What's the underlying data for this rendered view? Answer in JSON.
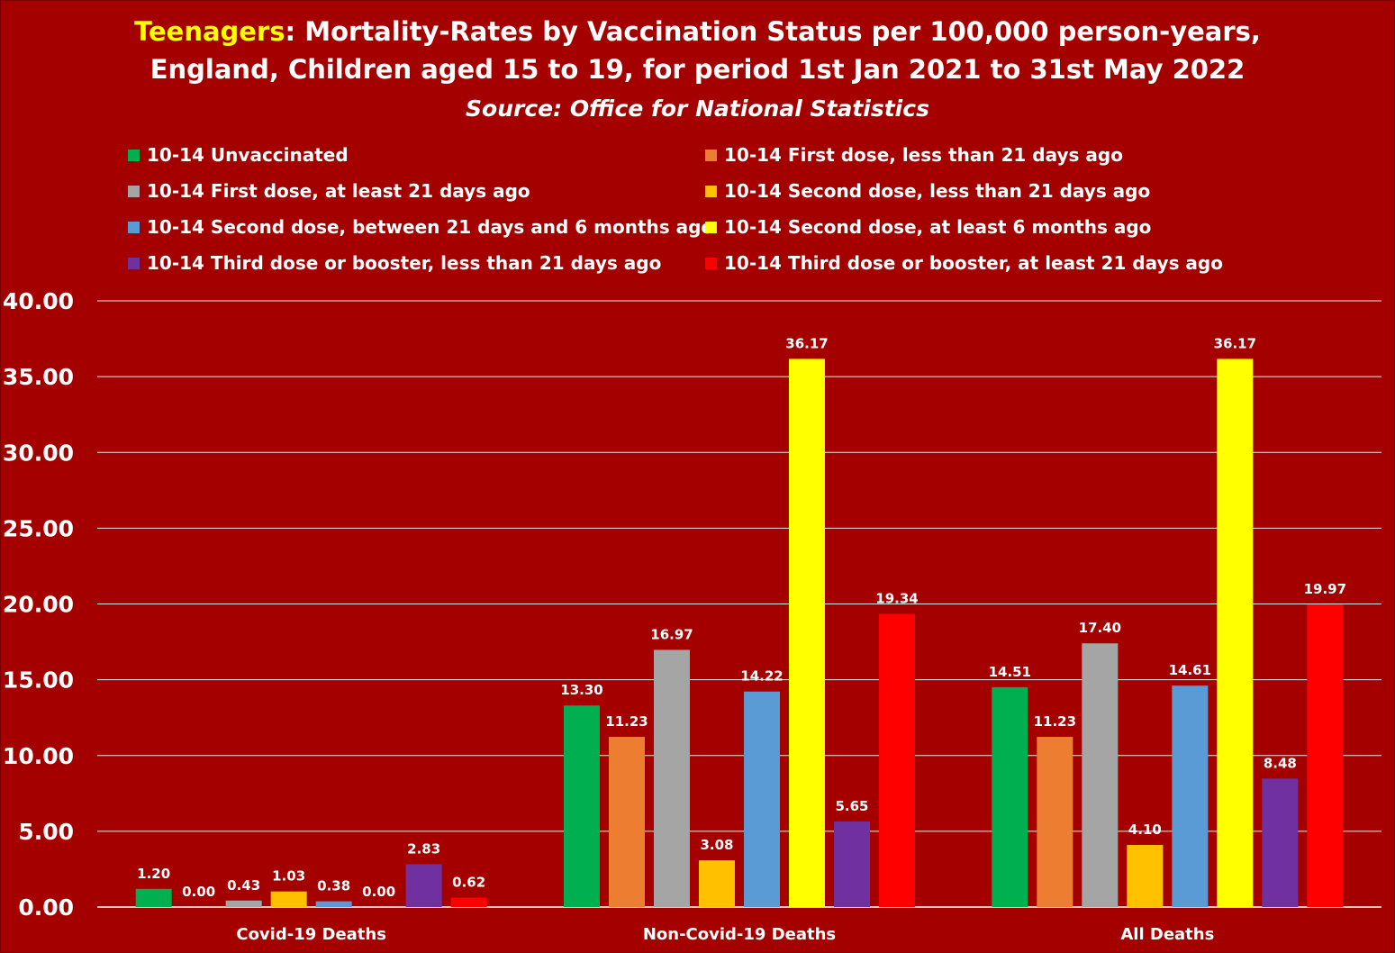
{
  "chart_data": {
    "type": "bar",
    "title_highlight": "Teenagers",
    "title_rest": ": Mortality-Rates by Vaccination Status per 100,000 person-years,",
    "title_line2": "England, Children aged 15 to 19, for period 1st Jan 2021 to 31st May 2022",
    "subtitle": "Source: Office for National Statistics",
    "categories": [
      "Covid-19 Deaths",
      "Non-Covid-19 Deaths",
      "All Deaths"
    ],
    "ylim": [
      0,
      40
    ],
    "yticks": [
      "0.00",
      "5.00",
      "10.00",
      "15.00",
      "20.00",
      "25.00",
      "30.00",
      "35.00",
      "40.00"
    ],
    "grid": true,
    "legend_position": "top",
    "series": [
      {
        "name": "10-14 Unvaccinated",
        "color": "#00b050",
        "values": [
          1.2,
          13.3,
          14.51
        ],
        "labels": [
          "1.20",
          "13.30",
          "14.51"
        ]
      },
      {
        "name": "10-14 First dose, less than 21 days ago",
        "color": "#ed7d31",
        "values": [
          0.0,
          11.23,
          11.23
        ],
        "labels": [
          "0.00",
          "11.23",
          "11.23"
        ]
      },
      {
        "name": "10-14 First dose, at least 21 days ago",
        "color": "#a5a5a5",
        "values": [
          0.43,
          16.97,
          17.4
        ],
        "labels": [
          "0.43",
          "16.97",
          "17.40"
        ]
      },
      {
        "name": "10-14 Second dose, less than 21 days ago",
        "color": "#ffc000",
        "values": [
          1.03,
          3.08,
          4.1
        ],
        "labels": [
          "1.03",
          "3.08",
          "4.10"
        ]
      },
      {
        "name": "10-14 Second dose, between 21 days and 6 months ago",
        "color": "#5b9bd5",
        "values": [
          0.38,
          14.22,
          14.61
        ],
        "labels": [
          "0.38",
          "14.22",
          "14.61"
        ]
      },
      {
        "name": "10-14 Second dose, at least 6 months ago",
        "color": "#ffff00",
        "values": [
          0.0,
          36.17,
          36.17
        ],
        "labels": [
          "0.00",
          "36.17",
          "36.17"
        ]
      },
      {
        "name": "10-14 Third dose or booster, less than 21 days ago",
        "color": "#7030a0",
        "values": [
          2.83,
          5.65,
          8.48
        ],
        "labels": [
          "2.83",
          "5.65",
          "8.48"
        ]
      },
      {
        "name": "10-14 Third dose or booster, at least 21 days ago",
        "color": "#ff0000",
        "values": [
          0.62,
          19.34,
          19.97
        ],
        "labels": [
          "0.62",
          "19.34",
          "19.97"
        ]
      }
    ]
  }
}
